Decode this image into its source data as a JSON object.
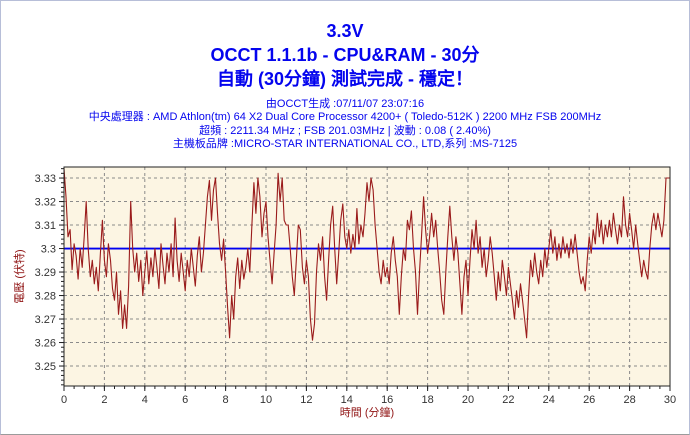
{
  "header": {
    "title": "3.3V",
    "subtitle": "OCCT 1.1.1b - CPU&RAM - 30分",
    "status": "自動 (30分鐘) 測試完成 - 穩定！"
  },
  "info": {
    "generated": "由OCCT生成 :07/11/07 23:07:16",
    "cpu": "中央處理器 : AMD Athlon(tm) 64 X2 Dual Core Processor 4200+ ( Toledo-512K ) 2200 MHz FSB 200MHz",
    "overclock": "超頻 : 2211.34 MHz ; FSB 201.03MHz | 波動 : 0.08 ( 2.40%)",
    "motherboard": "主機板品牌 :MICRO-STAR INTERNATIONAL CO., LTD,系列 :MS-7125"
  },
  "theme": {
    "accent_blue": "#0404ee",
    "plot_bg": "#fcf5e3",
    "grid_color": "#8a8a8a",
    "axis_color": "#222222",
    "tick_label_color": "#333333",
    "axis_title_color": "#911616",
    "series_color": "#9a1b1b",
    "baseline_color": "#0000f0"
  },
  "chart_data": {
    "type": "line",
    "title": "3.3V",
    "xlabel": "時間 (分鐘)",
    "ylabel": "電壓 (伏特)",
    "xlim": [
      0,
      30
    ],
    "ylim": [
      3.2415,
      3.3347
    ],
    "grid": true,
    "legend_position": "none",
    "x_minor_step": 0.5,
    "y_minor_step": 0.002,
    "x_ticks": [
      {
        "value": 0,
        "label": "0"
      },
      {
        "value": 2,
        "label": "2"
      },
      {
        "value": 4,
        "label": "4"
      },
      {
        "value": 6,
        "label": "6"
      },
      {
        "value": 8,
        "label": "8"
      },
      {
        "value": 10,
        "label": "10"
      },
      {
        "value": 12,
        "label": "12"
      },
      {
        "value": 14,
        "label": "14"
      },
      {
        "value": 16,
        "label": "16"
      },
      {
        "value": 18,
        "label": "18"
      },
      {
        "value": 20,
        "label": "20"
      },
      {
        "value": 22,
        "label": "22"
      },
      {
        "value": 24,
        "label": "24"
      },
      {
        "value": 26,
        "label": "26"
      },
      {
        "value": 28,
        "label": "28"
      },
      {
        "value": 30,
        "label": "30"
      }
    ],
    "y_ticks": [
      {
        "value": 3.25,
        "label": "3.25"
      },
      {
        "value": 3.26,
        "label": "3.26"
      },
      {
        "value": 3.27,
        "label": "3.27"
      },
      {
        "value": 3.28,
        "label": "3.28"
      },
      {
        "value": 3.29,
        "label": "3.29"
      },
      {
        "value": 3.3,
        "label": "3.3"
      },
      {
        "value": 3.31,
        "label": "3.31"
      },
      {
        "value": 3.32,
        "label": "3.32"
      },
      {
        "value": 3.33,
        "label": "3.33"
      }
    ],
    "baseline": {
      "value": 3.3
    },
    "series": [
      {
        "name": "3.3V voltage",
        "x_start": 0,
        "x_step": 0.1,
        "values": [
          3.334,
          3.322,
          3.305,
          3.308,
          3.291,
          3.302,
          3.297,
          3.287,
          3.3,
          3.292,
          3.305,
          3.32,
          3.3,
          3.288,
          3.295,
          3.285,
          3.292,
          3.282,
          3.298,
          3.312,
          3.295,
          3.288,
          3.302,
          3.295,
          3.283,
          3.278,
          3.29,
          3.272,
          3.282,
          3.266,
          3.276,
          3.266,
          3.284,
          3.32,
          3.3,
          3.29,
          3.298,
          3.286,
          3.295,
          3.28,
          3.29,
          3.299,
          3.285,
          3.296,
          3.288,
          3.3,
          3.292,
          3.283,
          3.302,
          3.293,
          3.285,
          3.298,
          3.29,
          3.302,
          3.288,
          3.313,
          3.295,
          3.286,
          3.298,
          3.29,
          3.282,
          3.295,
          3.288,
          3.3,
          3.292,
          3.284,
          3.297,
          3.305,
          3.29,
          3.298,
          3.31,
          3.322,
          3.329,
          3.312,
          3.325,
          3.33,
          3.315,
          3.302,
          3.295,
          3.304,
          3.29,
          3.275,
          3.262,
          3.28,
          3.27,
          3.288,
          3.296,
          3.283,
          3.295,
          3.287,
          3.292,
          3.3,
          3.29,
          3.31,
          3.328,
          3.315,
          3.33,
          3.322,
          3.305,
          3.315,
          3.32,
          3.305,
          3.295,
          3.285,
          3.298,
          3.31,
          3.332,
          3.32,
          3.33,
          3.312,
          3.31,
          3.31,
          3.3,
          3.288,
          3.28,
          3.295,
          3.31,
          3.308,
          3.292,
          3.285,
          3.295,
          3.288,
          3.27,
          3.261,
          3.268,
          3.29,
          3.302,
          3.295,
          3.305,
          3.288,
          3.278,
          3.295,
          3.31,
          3.318,
          3.3,
          3.285,
          3.298,
          3.312,
          3.319,
          3.305,
          3.3,
          3.308,
          3.298,
          3.306,
          3.3,
          3.317,
          3.302,
          3.31,
          3.305,
          3.315,
          3.328,
          3.32,
          3.33,
          3.325,
          3.31,
          3.3,
          3.29,
          3.285,
          3.295,
          3.288,
          3.292,
          3.285,
          3.298,
          3.305,
          3.295,
          3.288,
          3.272,
          3.288,
          3.3,
          3.295,
          3.312,
          3.308,
          3.316,
          3.3,
          3.29,
          3.272,
          3.29,
          3.305,
          3.322,
          3.308,
          3.298,
          3.305,
          3.315,
          3.305,
          3.312,
          3.3,
          3.29,
          3.278,
          3.272,
          3.29,
          3.305,
          3.318,
          3.305,
          3.295,
          3.305,
          3.298,
          3.285,
          3.272,
          3.288,
          3.295,
          3.28,
          3.295,
          3.308,
          3.3,
          3.312,
          3.298,
          3.305,
          3.292,
          3.3,
          3.288,
          3.295,
          3.305,
          3.298,
          3.288,
          3.278,
          3.29,
          3.282,
          3.295,
          3.288,
          3.28,
          3.292,
          3.285,
          3.278,
          3.27,
          3.282,
          3.275,
          3.285,
          3.278,
          3.27,
          3.262,
          3.28,
          3.295,
          3.288,
          3.298,
          3.29,
          3.285,
          3.295,
          3.288,
          3.3,
          3.292,
          3.3,
          3.308,
          3.298,
          3.305,
          3.295,
          3.302,
          3.296,
          3.305,
          3.298,
          3.302,
          3.296,
          3.304,
          3.298,
          3.306,
          3.298,
          3.29,
          3.285,
          3.288,
          3.282,
          3.295,
          3.305,
          3.298,
          3.308,
          3.302,
          3.315,
          3.305,
          3.312,
          3.302,
          3.31,
          3.305,
          3.312,
          3.305,
          3.315,
          3.308,
          3.302,
          3.31,
          3.305,
          3.322,
          3.31,
          3.305,
          3.315,
          3.308,
          3.3,
          3.31,
          3.302,
          3.295,
          3.288,
          3.295,
          3.29,
          3.287,
          3.3,
          3.31,
          3.315,
          3.308,
          3.315,
          3.31,
          3.305,
          3.312,
          3.33,
          3.33,
          3.33
        ]
      }
    ]
  }
}
